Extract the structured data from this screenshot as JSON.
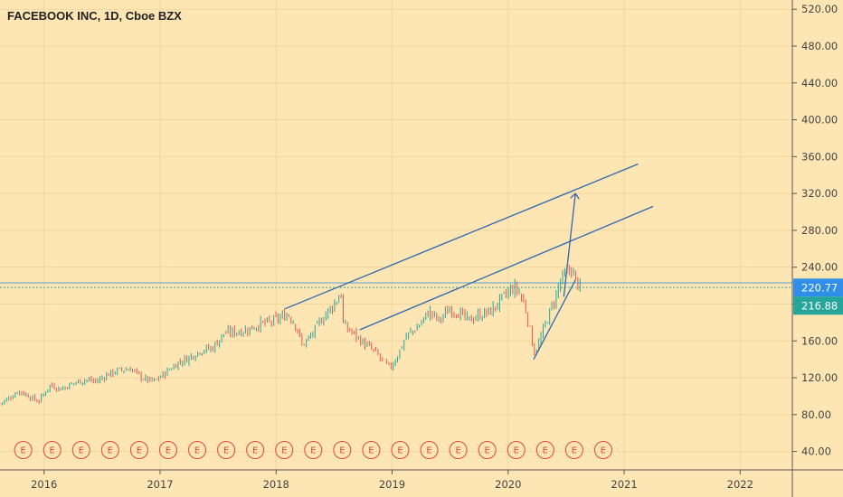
{
  "chart_data": {
    "type": "candlestick",
    "title": "FACEBOOK INC, 1D, Cboe BZX",
    "y_axis": {
      "ticks": [
        "40.00",
        "80.00",
        "120.00",
        "160.00",
        "200.00",
        "240.00",
        "280.00",
        "320.00",
        "360.00",
        "400.00",
        "440.00",
        "480.00",
        "520.00"
      ],
      "ylim": [
        20,
        530
      ]
    },
    "x_axis": {
      "ticks": [
        {
          "label": "2016",
          "t": 2016.0
        },
        {
          "label": "2017",
          "t": 2017.0
        },
        {
          "label": "2018",
          "t": 2018.0
        },
        {
          "label": "2019",
          "t": 2019.0
        },
        {
          "label": "2020",
          "t": 2020.0
        },
        {
          "label": "2021",
          "t": 2021.0
        },
        {
          "label": "2022",
          "t": 2022.0
        }
      ],
      "xlim": [
        2015.62,
        2022.45
      ]
    },
    "price_tags": [
      {
        "value": 220.77,
        "label": "220.77",
        "color": "#2f8fe8"
      },
      {
        "value": 216.88,
        "label": "216.88",
        "color": "#26a69a"
      }
    ],
    "horizontal_lines": [
      {
        "value": 223,
        "color": "#5aa0d8"
      },
      {
        "value": 218,
        "color": "#26a69a",
        "dashed": true
      }
    ],
    "price_path": [
      [
        2015.62,
        92
      ],
      [
        2015.7,
        98
      ],
      [
        2015.78,
        106
      ],
      [
        2015.87,
        100
      ],
      [
        2015.95,
        94
      ],
      [
        2016.05,
        112
      ],
      [
        2016.15,
        108
      ],
      [
        2016.25,
        114
      ],
      [
        2016.35,
        118
      ],
      [
        2016.45,
        116
      ],
      [
        2016.55,
        124
      ],
      [
        2016.65,
        128
      ],
      [
        2016.75,
        130
      ],
      [
        2016.82,
        122
      ],
      [
        2016.88,
        118
      ],
      [
        2016.95,
        116
      ],
      [
        2017.05,
        126
      ],
      [
        2017.15,
        136
      ],
      [
        2017.25,
        142
      ],
      [
        2017.35,
        150
      ],
      [
        2017.45,
        152
      ],
      [
        2017.55,
        168
      ],
      [
        2017.65,
        170
      ],
      [
        2017.75,
        172
      ],
      [
        2017.85,
        178
      ],
      [
        2017.95,
        180
      ],
      [
        2018.05,
        186
      ],
      [
        2018.1,
        190
      ],
      [
        2018.18,
        175
      ],
      [
        2018.22,
        155
      ],
      [
        2018.3,
        165
      ],
      [
        2018.4,
        185
      ],
      [
        2018.5,
        200
      ],
      [
        2018.56,
        212
      ],
      [
        2018.58,
        176
      ],
      [
        2018.65,
        170
      ],
      [
        2018.75,
        158
      ],
      [
        2018.85,
        148
      ],
      [
        2018.92,
        138
      ],
      [
        2018.98,
        130
      ],
      [
        2019.05,
        145
      ],
      [
        2019.12,
        165
      ],
      [
        2019.22,
        175
      ],
      [
        2019.32,
        192
      ],
      [
        2019.4,
        182
      ],
      [
        2019.5,
        195
      ],
      [
        2019.58,
        190
      ],
      [
        2019.65,
        182
      ],
      [
        2019.75,
        188
      ],
      [
        2019.85,
        192
      ],
      [
        2019.95,
        206
      ],
      [
        2020.05,
        218
      ],
      [
        2020.1,
        212
      ],
      [
        2020.15,
        195
      ],
      [
        2020.2,
        165
      ],
      [
        2020.22,
        148
      ],
      [
        2020.25,
        152
      ],
      [
        2020.32,
        178
      ],
      [
        2020.4,
        205
      ],
      [
        2020.45,
        225
      ],
      [
        2020.5,
        232
      ],
      [
        2020.54,
        240
      ],
      [
        2020.58,
        226
      ],
      [
        2020.62,
        218
      ]
    ],
    "trendlines": [
      {
        "from": [
          2018.08,
          195
        ],
        "to": [
          2021.12,
          352
        ],
        "color": "#3266b0"
      },
      {
        "from": [
          2018.72,
          172
        ],
        "to": [
          2021.25,
          306
        ],
        "color": "#3266b0"
      },
      {
        "from": [
          2020.22,
          140
        ],
        "to": [
          2020.58,
          226
        ],
        "color": "#3266b0"
      },
      {
        "from": [
          2020.48,
          208
        ],
        "to": [
          2020.58,
          320
        ],
        "color": "#3266b0",
        "arrow": true
      }
    ],
    "earnings": {
      "marker": "E",
      "dates": [
        2015.82,
        2016.07,
        2016.32,
        2016.57,
        2016.82,
        2017.07,
        2017.32,
        2017.57,
        2017.82,
        2018.07,
        2018.32,
        2018.57,
        2018.82,
        2019.07,
        2019.32,
        2019.57,
        2019.82,
        2020.07,
        2020.32,
        2020.57,
        2020.82
      ]
    }
  }
}
